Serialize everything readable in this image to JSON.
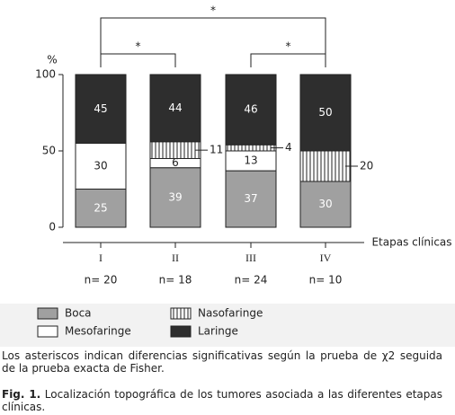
{
  "chart_data": {
    "type": "stacked-bar",
    "y_label": "%",
    "x_label": "Etapas clínicas",
    "categories": [
      "I",
      "II",
      "III",
      "IV"
    ],
    "n_labels": [
      "n= 20",
      "n= 18",
      "n= 24",
      "n= 10"
    ],
    "series": [
      {
        "name": "Boca",
        "color": "#a0a0a0",
        "values": [
          25,
          39,
          37,
          30
        ]
      },
      {
        "name": "Mesofaringe",
        "color": "#ffffff",
        "values": [
          30,
          6,
          13,
          null
        ]
      },
      {
        "name": "Nasofaringe",
        "color": "#ffffff",
        "hatch": "vertical",
        "values": [
          null,
          11,
          4,
          20
        ]
      },
      {
        "name": "Laringe",
        "color": "#2e2e2e",
        "values": [
          45,
          44,
          46,
          50
        ]
      }
    ],
    "ylim": [
      0,
      100
    ],
    "yticks": [
      0,
      50,
      100
    ],
    "annotations": [
      "*",
      "*",
      "*"
    ]
  },
  "footnote": "Los asteriscos indican diferencias significativas según la prueba de χ2 seguida de la prueba exacta de Fisher.",
  "caption": {
    "label": "Fig. 1.",
    "text": "Localización topográfica de los tumores asociada a las diferentes etapas clínicas."
  }
}
